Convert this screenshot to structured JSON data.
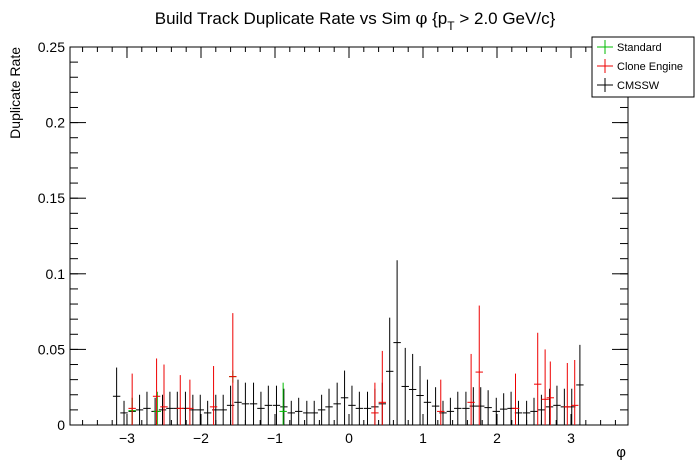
{
  "chart_data": {
    "type": "scatter",
    "title": {
      "main": "Build Track Duplicate Rate vs Sim ",
      "phi": "φ",
      "pt_open": " {p",
      "pt_sub": "T",
      "pt_close": " > 2.0 GeV/c}"
    },
    "xlabel": "φ",
    "ylabel": "Duplicate Rate",
    "xlim": [
      -3.77,
      3.77
    ],
    "ylim": [
      0,
      0.25
    ],
    "x_ticks": [
      {
        "v": -3,
        "label": "−3"
      },
      {
        "v": -2,
        "label": "−2"
      },
      {
        "v": -1,
        "label": "−1"
      },
      {
        "v": 0,
        "label": "0"
      },
      {
        "v": 1,
        "label": "1"
      },
      {
        "v": 2,
        "label": "2"
      },
      {
        "v": 3,
        "label": "3"
      }
    ],
    "y_ticks": [
      {
        "v": 0,
        "label": "0"
      },
      {
        "v": 0.05,
        "label": "0.05"
      },
      {
        "v": 0.1,
        "label": "0.1"
      },
      {
        "v": 0.15,
        "label": "0.15"
      },
      {
        "v": 0.2,
        "label": "0.2"
      },
      {
        "v": 0.25,
        "label": "0.25"
      }
    ],
    "grid": false,
    "legend_position": "top-right",
    "series": [
      {
        "name": "Standard",
        "color": "#00bb00",
        "points": [
          {
            "x": -2.93,
            "y": 0.0095,
            "err": 0.0085
          },
          {
            "x": -2.59,
            "y": 0.009,
            "err": 0.013
          },
          {
            "x": -1.57,
            "y": 0.032,
            "err": 0.004
          },
          {
            "x": -0.89,
            "y": 0.009,
            "err": 0.019
          }
        ]
      },
      {
        "name": "Clone Engine",
        "color": "#ee0000",
        "points": [
          {
            "x": -2.93,
            "y": 0.011,
            "err": 0.023
          },
          {
            "x": -2.6,
            "y": 0.019,
            "err": 0.025
          },
          {
            "x": -2.5,
            "y": 0.012,
            "err": 0.028
          },
          {
            "x": -2.28,
            "y": 0.011,
            "err": 0.022
          },
          {
            "x": -2.15,
            "y": 0.011,
            "err": 0.019
          },
          {
            "x": -1.83,
            "y": 0.012,
            "err": 0.027
          },
          {
            "x": -1.57,
            "y": 0.032,
            "err": 0.042
          },
          {
            "x": 0.35,
            "y": 0.008,
            "err": 0.02
          },
          {
            "x": 0.45,
            "y": 0.015,
            "err": 0.034
          },
          {
            "x": 1.24,
            "y": 0.009,
            "err": 0.021
          },
          {
            "x": 1.65,
            "y": 0.015,
            "err": 0.032
          },
          {
            "x": 1.76,
            "y": 0.035,
            "err": 0.044
          },
          {
            "x": 2.25,
            "y": 0.011,
            "err": 0.023
          },
          {
            "x": 2.55,
            "y": 0.027,
            "err": 0.034
          },
          {
            "x": 2.65,
            "y": 0.017,
            "err": 0.033
          },
          {
            "x": 2.72,
            "y": 0.018,
            "err": 0.024
          },
          {
            "x": 2.95,
            "y": 0.012,
            "err": 0.029
          },
          {
            "x": 3.05,
            "y": 0.013,
            "err": 0.03
          }
        ]
      },
      {
        "name": "CMSSW",
        "color": "#000000",
        "points": [
          {
            "x": -3.14,
            "y": 0.019,
            "err": 0.019
          },
          {
            "x": -3.04,
            "y": 0.008,
            "err": 0.008
          },
          {
            "x": -2.93,
            "y": 0.009,
            "err": 0.009
          },
          {
            "x": -2.83,
            "y": 0.01,
            "err": 0.01
          },
          {
            "x": -2.73,
            "y": 0.011,
            "err": 0.011
          },
          {
            "x": -2.62,
            "y": 0.009,
            "err": 0.009
          },
          {
            "x": -2.52,
            "y": 0.01,
            "err": 0.01
          },
          {
            "x": -2.42,
            "y": 0.011,
            "err": 0.011
          },
          {
            "x": -2.32,
            "y": 0.011,
            "err": 0.011
          },
          {
            "x": -2.21,
            "y": 0.011,
            "err": 0.011
          },
          {
            "x": -2.11,
            "y": 0.01,
            "err": 0.01
          },
          {
            "x": -2.01,
            "y": 0.01,
            "err": 0.01
          },
          {
            "x": -1.91,
            "y": 0.008,
            "err": 0.008
          },
          {
            "x": -1.8,
            "y": 0.01,
            "err": 0.01
          },
          {
            "x": -1.7,
            "y": 0.01,
            "err": 0.01
          },
          {
            "x": -1.6,
            "y": 0.013,
            "err": 0.013
          },
          {
            "x": -1.5,
            "y": 0.015,
            "err": 0.015
          },
          {
            "x": -1.4,
            "y": 0.014,
            "err": 0.014
          },
          {
            "x": -1.29,
            "y": 0.014,
            "err": 0.014
          },
          {
            "x": -1.19,
            "y": 0.011,
            "err": 0.011
          },
          {
            "x": -1.09,
            "y": 0.013,
            "err": 0.013
          },
          {
            "x": -0.98,
            "y": 0.013,
            "err": 0.013
          },
          {
            "x": -0.88,
            "y": 0.012,
            "err": 0.012
          },
          {
            "x": -0.78,
            "y": 0.008,
            "err": 0.008
          },
          {
            "x": -0.68,
            "y": 0.009,
            "err": 0.009
          },
          {
            "x": -0.57,
            "y": 0.008,
            "err": 0.008
          },
          {
            "x": -0.47,
            "y": 0.008,
            "err": 0.008
          },
          {
            "x": -0.37,
            "y": 0.01,
            "err": 0.01
          },
          {
            "x": -0.27,
            "y": 0.012,
            "err": 0.012
          },
          {
            "x": -0.16,
            "y": 0.014,
            "err": 0.014
          },
          {
            "x": -0.06,
            "y": 0.018,
            "err": 0.018
          },
          {
            "x": 0.04,
            "y": 0.013,
            "err": 0.013
          },
          {
            "x": 0.14,
            "y": 0.011,
            "err": 0.011
          },
          {
            "x": 0.25,
            "y": 0.011,
            "err": 0.011
          },
          {
            "x": 0.35,
            "y": 0.012,
            "err": 0.012
          },
          {
            "x": 0.45,
            "y": 0.014,
            "err": 0.014
          },
          {
            "x": 0.55,
            "y": 0.0355,
            "err": 0.0355
          },
          {
            "x": 0.65,
            "y": 0.0545,
            "err": 0.0545
          },
          {
            "x": 0.76,
            "y": 0.0255,
            "err": 0.0255
          },
          {
            "x": 0.86,
            "y": 0.0235,
            "err": 0.0235
          },
          {
            "x": 0.96,
            "y": 0.0195,
            "err": 0.0195
          },
          {
            "x": 1.06,
            "y": 0.015,
            "err": 0.015
          },
          {
            "x": 1.17,
            "y": 0.0125,
            "err": 0.0125
          },
          {
            "x": 1.27,
            "y": 0.008,
            "err": 0.008
          },
          {
            "x": 1.37,
            "y": 0.009,
            "err": 0.009
          },
          {
            "x": 1.47,
            "y": 0.011,
            "err": 0.011
          },
          {
            "x": 1.58,
            "y": 0.011,
            "err": 0.011
          },
          {
            "x": 1.68,
            "y": 0.0125,
            "err": 0.0125
          },
          {
            "x": 1.78,
            "y": 0.0125,
            "err": 0.0125
          },
          {
            "x": 1.88,
            "y": 0.0115,
            "err": 0.0115
          },
          {
            "x": 1.99,
            "y": 0.009,
            "err": 0.009
          },
          {
            "x": 2.09,
            "y": 0.0105,
            "err": 0.0105
          },
          {
            "x": 2.19,
            "y": 0.011,
            "err": 0.011
          },
          {
            "x": 2.29,
            "y": 0.008,
            "err": 0.008
          },
          {
            "x": 2.4,
            "y": 0.008,
            "err": 0.008
          },
          {
            "x": 2.5,
            "y": 0.009,
            "err": 0.009
          },
          {
            "x": 2.6,
            "y": 0.01,
            "err": 0.01
          },
          {
            "x": 2.71,
            "y": 0.012,
            "err": 0.012
          },
          {
            "x": 2.81,
            "y": 0.013,
            "err": 0.013
          },
          {
            "x": 2.91,
            "y": 0.012,
            "err": 0.012
          },
          {
            "x": 3.01,
            "y": 0.012,
            "err": 0.012
          },
          {
            "x": 3.12,
            "y": 0.0265,
            "err": 0.0265
          }
        ]
      }
    ]
  }
}
